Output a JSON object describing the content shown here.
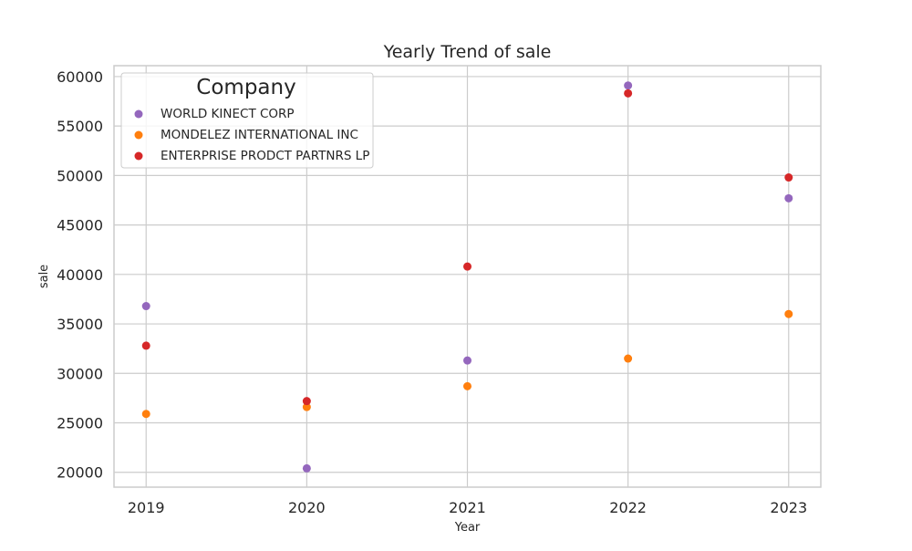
{
  "chart_data": {
    "type": "scatter",
    "title": "Yearly Trend of sale",
    "xlabel": "Year",
    "ylabel": "sale",
    "x": [
      2019,
      2020,
      2021,
      2022,
      2023
    ],
    "x_ticks": [
      "2019",
      "2020",
      "2021",
      "2022",
      "2023"
    ],
    "y_ticks": [
      20000,
      25000,
      30000,
      35000,
      40000,
      45000,
      50000,
      55000,
      60000
    ],
    "xlim": [
      2018.8,
      2023.2
    ],
    "ylim": [
      18500,
      61100
    ],
    "grid": true,
    "legend": {
      "title": "Company",
      "placement": "top-left"
    },
    "series": [
      {
        "name": "WORLD KINECT CORP",
        "color": "#9467bd",
        "values": [
          36800,
          20400,
          31300,
          59100,
          47700
        ]
      },
      {
        "name": "MONDELEZ INTERNATIONAL INC",
        "color": "#ff7f0e",
        "values": [
          25900,
          26600,
          28700,
          31500,
          36000
        ]
      },
      {
        "name": "ENTERPRISE PRODCT PARTNRS LP",
        "color": "#d62728",
        "values": [
          32800,
          27200,
          40800,
          58300,
          49800
        ]
      }
    ]
  }
}
